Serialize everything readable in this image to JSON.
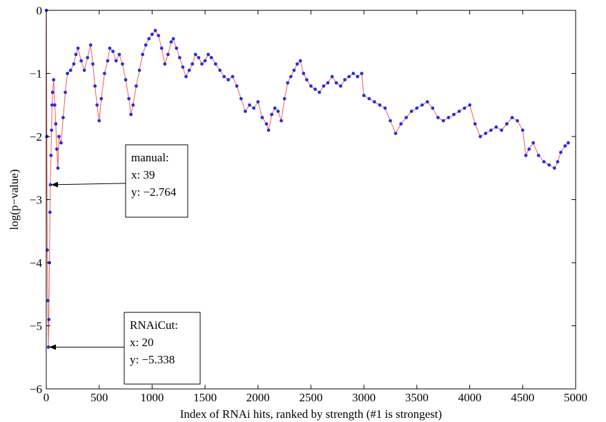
{
  "chart_data": {
    "type": "scatter",
    "title": "",
    "xlabel": "Index of RNAi hits, ranked by strength (#1 is strongest)",
    "ylabel": "log(p−value)",
    "xlim": [
      0,
      5000
    ],
    "ylim": [
      -6,
      0
    ],
    "xticks": [
      "0",
      "500",
      "1000",
      "1500",
      "2000",
      "2500",
      "3000",
      "3500",
      "4000",
      "4500",
      "5000"
    ],
    "yticks": [
      "0",
      "−1",
      "−2",
      "−3",
      "−4",
      "−5",
      "−6"
    ],
    "grid": false,
    "series": [
      {
        "color": "#1f2fe0",
        "line_color": "#ff5555",
        "points": [
          [
            1,
            0
          ],
          [
            5,
            -2.0
          ],
          [
            10,
            -3.8
          ],
          [
            15,
            -4.6
          ],
          [
            20,
            -5.338
          ],
          [
            25,
            -4.9
          ],
          [
            30,
            -4.0
          ],
          [
            35,
            -3.2
          ],
          [
            39,
            -2.764
          ],
          [
            45,
            -2.3
          ],
          [
            50,
            -1.9
          ],
          [
            55,
            -1.5
          ],
          [
            60,
            -1.3
          ],
          [
            70,
            -1.1
          ],
          [
            80,
            -1.5
          ],
          [
            90,
            -1.8
          ],
          [
            100,
            -2.2
          ],
          [
            110,
            -2.5
          ],
          [
            120,
            -2.0
          ],
          [
            140,
            -2.1
          ],
          [
            160,
            -1.7
          ],
          [
            180,
            -1.3
          ],
          [
            200,
            -1.0
          ],
          [
            230,
            -0.95
          ],
          [
            260,
            -0.85
          ],
          [
            280,
            -0.7
          ],
          [
            300,
            -0.6
          ],
          [
            330,
            -0.8
          ],
          [
            360,
            -0.95
          ],
          [
            390,
            -0.75
          ],
          [
            420,
            -0.55
          ],
          [
            440,
            -0.85
          ],
          [
            460,
            -1.2
          ],
          [
            480,
            -1.5
          ],
          [
            500,
            -1.75
          ],
          [
            520,
            -1.4
          ],
          [
            550,
            -1.0
          ],
          [
            580,
            -0.8
          ],
          [
            600,
            -0.6
          ],
          [
            630,
            -0.65
          ],
          [
            660,
            -0.8
          ],
          [
            690,
            -0.7
          ],
          [
            720,
            -0.85
          ],
          [
            750,
            -1.1
          ],
          [
            780,
            -1.4
          ],
          [
            800,
            -1.65
          ],
          [
            820,
            -1.5
          ],
          [
            850,
            -1.2
          ],
          [
            880,
            -0.95
          ],
          [
            910,
            -0.7
          ],
          [
            940,
            -0.55
          ],
          [
            970,
            -0.45
          ],
          [
            1000,
            -0.38
          ],
          [
            1030,
            -0.32
          ],
          [
            1060,
            -0.4
          ],
          [
            1090,
            -0.6
          ],
          [
            1120,
            -0.85
          ],
          [
            1150,
            -0.7
          ],
          [
            1180,
            -0.5
          ],
          [
            1200,
            -0.45
          ],
          [
            1230,
            -0.6
          ],
          [
            1260,
            -0.75
          ],
          [
            1290,
            -0.9
          ],
          [
            1320,
            -1.05
          ],
          [
            1350,
            -0.95
          ],
          [
            1380,
            -0.85
          ],
          [
            1410,
            -0.7
          ],
          [
            1440,
            -0.75
          ],
          [
            1470,
            -0.85
          ],
          [
            1500,
            -0.8
          ],
          [
            1530,
            -0.7
          ],
          [
            1560,
            -0.75
          ],
          [
            1600,
            -0.85
          ],
          [
            1640,
            -0.95
          ],
          [
            1680,
            -1.05
          ],
          [
            1720,
            -1.1
          ],
          [
            1760,
            -1.05
          ],
          [
            1800,
            -1.2
          ],
          [
            1840,
            -1.4
          ],
          [
            1880,
            -1.6
          ],
          [
            1920,
            -1.5
          ],
          [
            1960,
            -1.55
          ],
          [
            2000,
            -1.45
          ],
          [
            2040,
            -1.7
          ],
          [
            2080,
            -1.8
          ],
          [
            2100,
            -1.9
          ],
          [
            2130,
            -1.65
          ],
          [
            2160,
            -1.55
          ],
          [
            2190,
            -1.6
          ],
          [
            2220,
            -1.75
          ],
          [
            2250,
            -1.4
          ],
          [
            2280,
            -1.15
          ],
          [
            2310,
            -1.05
          ],
          [
            2340,
            -0.95
          ],
          [
            2370,
            -0.85
          ],
          [
            2400,
            -0.8
          ],
          [
            2430,
            -1.0
          ],
          [
            2460,
            -1.1
          ],
          [
            2500,
            -1.2
          ],
          [
            2540,
            -1.25
          ],
          [
            2580,
            -1.3
          ],
          [
            2620,
            -1.2
          ],
          [
            2660,
            -1.15
          ],
          [
            2700,
            -1.05
          ],
          [
            2740,
            -1.15
          ],
          [
            2780,
            -1.2
          ],
          [
            2820,
            -1.1
          ],
          [
            2860,
            -1.05
          ],
          [
            2900,
            -1.0
          ],
          [
            2940,
            -1.05
          ],
          [
            2980,
            -1.0
          ],
          [
            3000,
            -1.35
          ],
          [
            3050,
            -1.4
          ],
          [
            3100,
            -1.45
          ],
          [
            3150,
            -1.5
          ],
          [
            3200,
            -1.55
          ],
          [
            3250,
            -1.75
          ],
          [
            3300,
            -1.95
          ],
          [
            3350,
            -1.8
          ],
          [
            3400,
            -1.7
          ],
          [
            3450,
            -1.6
          ],
          [
            3500,
            -1.55
          ],
          [
            3550,
            -1.5
          ],
          [
            3600,
            -1.45
          ],
          [
            3650,
            -1.55
          ],
          [
            3700,
            -1.7
          ],
          [
            3750,
            -1.75
          ],
          [
            3800,
            -1.7
          ],
          [
            3850,
            -1.65
          ],
          [
            3900,
            -1.6
          ],
          [
            3950,
            -1.55
          ],
          [
            4000,
            -1.5
          ],
          [
            4050,
            -1.8
          ],
          [
            4100,
            -2.0
          ],
          [
            4150,
            -1.95
          ],
          [
            4200,
            -1.9
          ],
          [
            4250,
            -1.85
          ],
          [
            4300,
            -1.9
          ],
          [
            4350,
            -1.8
          ],
          [
            4400,
            -1.7
          ],
          [
            4450,
            -1.75
          ],
          [
            4500,
            -1.9
          ],
          [
            4530,
            -2.3
          ],
          [
            4560,
            -2.2
          ],
          [
            4600,
            -2.1
          ],
          [
            4650,
            -2.3
          ],
          [
            4700,
            -2.4
          ],
          [
            4750,
            -2.45
          ],
          [
            4800,
            -2.5
          ],
          [
            4830,
            -2.4
          ],
          [
            4860,
            -2.25
          ],
          [
            4900,
            -2.15
          ],
          [
            4930,
            -2.1
          ]
        ]
      }
    ],
    "annotations": [
      {
        "x": 39,
        "y": -2.764,
        "lines": [
          "manual:",
          "x: 39",
          "y: −2.764"
        ]
      },
      {
        "x": 20,
        "y": -5.338,
        "lines": [
          "RNAiCut:",
          "x: 20",
          "y: −5.338"
        ]
      }
    ]
  }
}
